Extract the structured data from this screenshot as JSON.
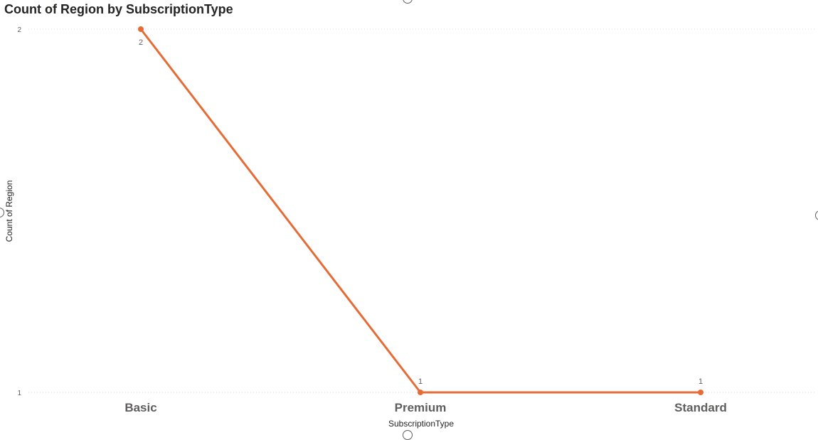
{
  "visual": {
    "title": "Count of Region by SubscriptionType"
  },
  "chart_data": {
    "type": "line",
    "title": "Count of Region by SubscriptionType",
    "xlabel": "SubscriptionType",
    "ylabel": "Count of Region",
    "categories": [
      "Basic",
      "Premium",
      "Standard"
    ],
    "series": [
      {
        "values": [
          2,
          1,
          1
        ]
      }
    ],
    "data_labels": [
      "2",
      "1",
      "1"
    ],
    "y_ticks": [
      "2",
      "1"
    ],
    "ylim": [
      1,
      2
    ],
    "grid": true,
    "legend": "none",
    "colors": {
      "line": "#E66C37",
      "grid": "#d9d9d9",
      "tick_text": "#605e5c",
      "category_text": "#605e5c",
      "axis_title_text": "#252423"
    }
  }
}
